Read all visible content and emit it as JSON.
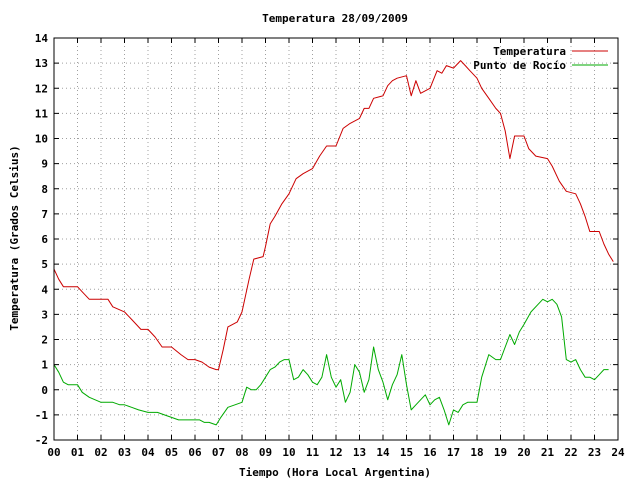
{
  "chart_data": {
    "type": "line",
    "title": "Temperatura 28/09/2009",
    "xlabel": "Tiempo (Hora Local Argentina)",
    "ylabel": "Temperatura (Grados Celsius)",
    "xlim": [
      0,
      24
    ],
    "ylim": [
      -2,
      14
    ],
    "xticks": [
      0,
      1,
      2,
      3,
      4,
      5,
      6,
      7,
      8,
      9,
      10,
      11,
      12,
      13,
      14,
      15,
      16,
      17,
      18,
      19,
      20,
      21,
      22,
      23,
      24
    ],
    "xtick_labels": [
      "00",
      "01",
      "02",
      "03",
      "04",
      "05",
      "06",
      "07",
      "08",
      "09",
      "10",
      "11",
      "12",
      "13",
      "14",
      "15",
      "16",
      "17",
      "18",
      "19",
      "20",
      "21",
      "22",
      "23",
      "24"
    ],
    "yticks": [
      -2,
      -1,
      0,
      1,
      2,
      3,
      4,
      5,
      6,
      7,
      8,
      9,
      10,
      11,
      12,
      13,
      14
    ],
    "ytick_labels": [
      "-2",
      "-1",
      "0",
      "1",
      "2",
      "3",
      "4",
      "5",
      "6",
      "7",
      "8",
      "9",
      "10",
      "11",
      "12",
      "13",
      "14"
    ],
    "grid": true,
    "legend_position": "top-right",
    "series": [
      {
        "name": "Temperatura",
        "color": "#cc0000",
        "points": [
          [
            0.0,
            4.8
          ],
          [
            0.2,
            4.4
          ],
          [
            0.4,
            4.1
          ],
          [
            1.0,
            4.1
          ],
          [
            1.2,
            3.9
          ],
          [
            1.5,
            3.6
          ],
          [
            2.0,
            3.6
          ],
          [
            2.3,
            3.6
          ],
          [
            2.5,
            3.3
          ],
          [
            3.0,
            3.1
          ],
          [
            3.3,
            2.8
          ],
          [
            3.7,
            2.4
          ],
          [
            4.0,
            2.4
          ],
          [
            4.3,
            2.1
          ],
          [
            4.6,
            1.7
          ],
          [
            5.0,
            1.7
          ],
          [
            5.4,
            1.4
          ],
          [
            5.7,
            1.2
          ],
          [
            6.0,
            1.2
          ],
          [
            6.3,
            1.1
          ],
          [
            6.6,
            0.9
          ],
          [
            6.9,
            0.8
          ],
          [
            7.0,
            0.8
          ],
          [
            7.2,
            1.6
          ],
          [
            7.4,
            2.5
          ],
          [
            7.8,
            2.7
          ],
          [
            8.0,
            3.1
          ],
          [
            8.3,
            4.4
          ],
          [
            8.5,
            5.2
          ],
          [
            8.9,
            5.3
          ],
          [
            9.0,
            5.7
          ],
          [
            9.2,
            6.6
          ],
          [
            9.4,
            6.9
          ],
          [
            9.7,
            7.4
          ],
          [
            10.0,
            7.8
          ],
          [
            10.3,
            8.4
          ],
          [
            10.6,
            8.6
          ],
          [
            11.0,
            8.8
          ],
          [
            11.3,
            9.3
          ],
          [
            11.6,
            9.7
          ],
          [
            12.0,
            9.7
          ],
          [
            12.3,
            10.4
          ],
          [
            12.6,
            10.6
          ],
          [
            13.0,
            10.8
          ],
          [
            13.2,
            11.2
          ],
          [
            13.4,
            11.2
          ],
          [
            13.6,
            11.6
          ],
          [
            14.0,
            11.7
          ],
          [
            14.2,
            12.1
          ],
          [
            14.4,
            12.3
          ],
          [
            14.6,
            12.4
          ],
          [
            15.0,
            12.5
          ],
          [
            15.2,
            11.7
          ],
          [
            15.4,
            12.3
          ],
          [
            15.6,
            11.8
          ],
          [
            16.0,
            12.0
          ],
          [
            16.3,
            12.7
          ],
          [
            16.5,
            12.6
          ],
          [
            16.7,
            12.9
          ],
          [
            17.0,
            12.8
          ],
          [
            17.3,
            13.1
          ],
          [
            17.5,
            12.9
          ],
          [
            17.7,
            12.7
          ],
          [
            18.0,
            12.4
          ],
          [
            18.2,
            12.0
          ],
          [
            18.5,
            11.6
          ],
          [
            18.8,
            11.2
          ],
          [
            19.0,
            11.0
          ],
          [
            19.2,
            10.3
          ],
          [
            19.4,
            9.2
          ],
          [
            19.6,
            10.1
          ],
          [
            20.0,
            10.1
          ],
          [
            20.2,
            9.6
          ],
          [
            20.5,
            9.3
          ],
          [
            21.0,
            9.2
          ],
          [
            21.2,
            8.9
          ],
          [
            21.5,
            8.3
          ],
          [
            21.8,
            7.9
          ],
          [
            22.2,
            7.8
          ],
          [
            22.4,
            7.4
          ],
          [
            22.6,
            6.9
          ],
          [
            22.8,
            6.3
          ],
          [
            23.2,
            6.3
          ],
          [
            23.4,
            5.8
          ],
          [
            23.6,
            5.4
          ],
          [
            23.8,
            5.1
          ]
        ]
      },
      {
        "name": "Punto de Rocío",
        "color": "#00aa00",
        "points": [
          [
            0.0,
            1.0
          ],
          [
            0.2,
            0.7
          ],
          [
            0.4,
            0.3
          ],
          [
            0.6,
            0.2
          ],
          [
            1.0,
            0.2
          ],
          [
            1.2,
            -0.1
          ],
          [
            1.5,
            -0.3
          ],
          [
            2.0,
            -0.5
          ],
          [
            2.5,
            -0.5
          ],
          [
            2.8,
            -0.6
          ],
          [
            3.0,
            -0.6
          ],
          [
            3.3,
            -0.7
          ],
          [
            3.6,
            -0.8
          ],
          [
            4.0,
            -0.9
          ],
          [
            4.4,
            -0.9
          ],
          [
            4.7,
            -1.0
          ],
          [
            5.0,
            -1.1
          ],
          [
            5.3,
            -1.2
          ],
          [
            5.7,
            -1.2
          ],
          [
            6.0,
            -1.2
          ],
          [
            6.2,
            -1.2
          ],
          [
            6.4,
            -1.3
          ],
          [
            6.6,
            -1.3
          ],
          [
            6.9,
            -1.4
          ],
          [
            7.1,
            -1.1
          ],
          [
            7.4,
            -0.7
          ],
          [
            7.7,
            -0.6
          ],
          [
            8.0,
            -0.5
          ],
          [
            8.2,
            0.1
          ],
          [
            8.4,
            0.0
          ],
          [
            8.6,
            0.0
          ],
          [
            8.8,
            0.2
          ],
          [
            9.0,
            0.5
          ],
          [
            9.2,
            0.8
          ],
          [
            9.4,
            0.9
          ],
          [
            9.6,
            1.1
          ],
          [
            9.8,
            1.2
          ],
          [
            10.0,
            1.2
          ],
          [
            10.2,
            0.4
          ],
          [
            10.4,
            0.5
          ],
          [
            10.6,
            0.8
          ],
          [
            10.8,
            0.6
          ],
          [
            11.0,
            0.3
          ],
          [
            11.2,
            0.2
          ],
          [
            11.4,
            0.5
          ],
          [
            11.6,
            1.4
          ],
          [
            11.8,
            0.5
          ],
          [
            12.0,
            0.1
          ],
          [
            12.2,
            0.4
          ],
          [
            12.4,
            -0.5
          ],
          [
            12.6,
            -0.1
          ],
          [
            12.8,
            1.0
          ],
          [
            13.0,
            0.7
          ],
          [
            13.2,
            -0.1
          ],
          [
            13.4,
            0.4
          ],
          [
            13.6,
            1.7
          ],
          [
            13.8,
            0.8
          ],
          [
            14.0,
            0.3
          ],
          [
            14.2,
            -0.4
          ],
          [
            14.4,
            0.2
          ],
          [
            14.6,
            0.6
          ],
          [
            14.8,
            1.4
          ],
          [
            15.0,
            0.2
          ],
          [
            15.2,
            -0.8
          ],
          [
            15.4,
            -0.6
          ],
          [
            15.6,
            -0.4
          ],
          [
            15.8,
            -0.2
          ],
          [
            16.0,
            -0.6
          ],
          [
            16.2,
            -0.4
          ],
          [
            16.4,
            -0.3
          ],
          [
            16.6,
            -0.8
          ],
          [
            16.8,
            -1.4
          ],
          [
            17.0,
            -0.8
          ],
          [
            17.2,
            -0.9
          ],
          [
            17.4,
            -0.6
          ],
          [
            17.6,
            -0.5
          ],
          [
            18.0,
            -0.5
          ],
          [
            18.2,
            0.5
          ],
          [
            18.5,
            1.4
          ],
          [
            18.8,
            1.2
          ],
          [
            19.0,
            1.2
          ],
          [
            19.2,
            1.7
          ],
          [
            19.4,
            2.2
          ],
          [
            19.6,
            1.8
          ],
          [
            19.8,
            2.3
          ],
          [
            20.0,
            2.6
          ],
          [
            20.3,
            3.1
          ],
          [
            20.6,
            3.4
          ],
          [
            20.8,
            3.6
          ],
          [
            21.0,
            3.5
          ],
          [
            21.2,
            3.6
          ],
          [
            21.4,
            3.4
          ],
          [
            21.6,
            2.9
          ],
          [
            21.8,
            1.2
          ],
          [
            22.0,
            1.1
          ],
          [
            22.2,
            1.2
          ],
          [
            22.4,
            0.8
          ],
          [
            22.6,
            0.5
          ],
          [
            22.8,
            0.5
          ],
          [
            23.0,
            0.4
          ],
          [
            23.2,
            0.6
          ],
          [
            23.4,
            0.8
          ],
          [
            23.6,
            0.8
          ]
        ]
      }
    ]
  }
}
